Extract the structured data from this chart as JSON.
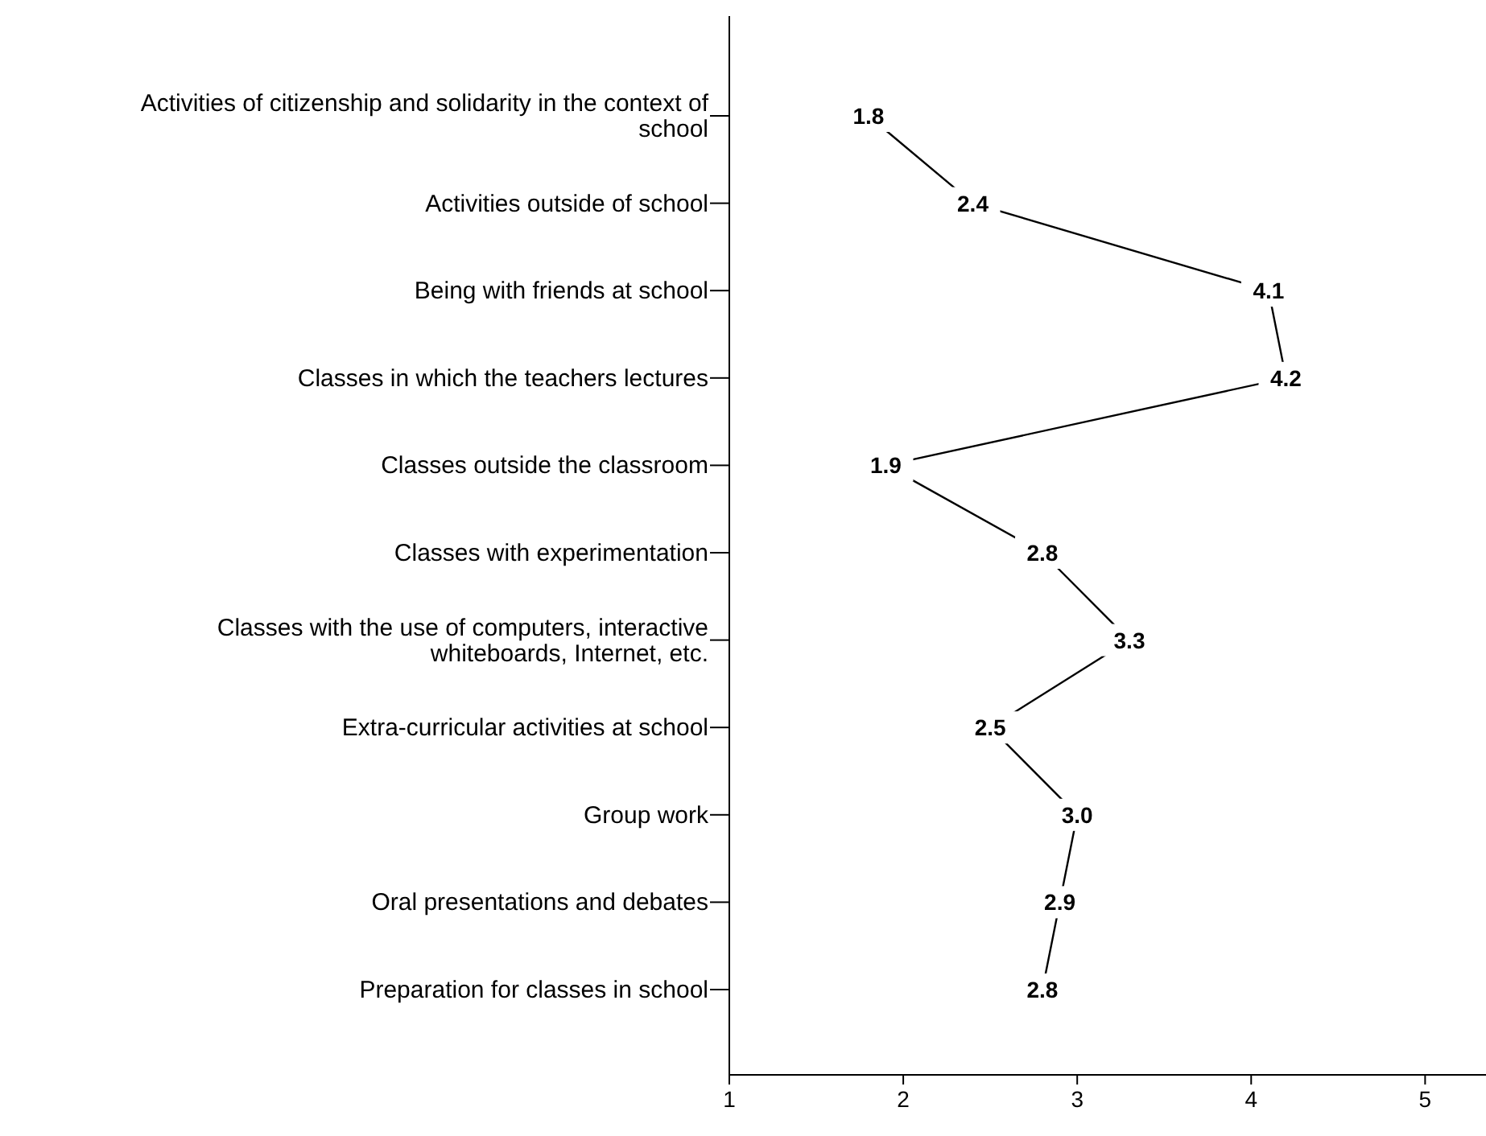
{
  "chart_data": {
    "type": "line",
    "orientation": "horizontal",
    "categories": [
      "Activities of citizenship and solidarity in the context of school",
      "Activities outside of school",
      "Being with friends at school",
      "Classes in which the teachers lectures",
      "Classes outside the classroom",
      "Classes with experimentation",
      "Classes with the use of computers, interactive whiteboards, Internet, etc.",
      "Extra-curricular activities at school",
      "Group work",
      "Oral presentations and debates",
      "Preparation for classes in school"
    ],
    "values": [
      1.8,
      2.4,
      4.1,
      4.2,
      1.9,
      2.8,
      3.3,
      2.5,
      3.0,
      2.9,
      2.8
    ],
    "value_labels": [
      "1.8",
      "2.4",
      "4.1",
      "4.2",
      "1.9",
      "2.8",
      "3.3",
      "2.5",
      "3.0",
      "2.9",
      "2.8"
    ],
    "color": "#000000",
    "marker": "none",
    "line_style": "solid",
    "xlim": [
      1,
      5.35
    ],
    "xticks": [
      1,
      2,
      3,
      4,
      5
    ],
    "grid": false
  }
}
